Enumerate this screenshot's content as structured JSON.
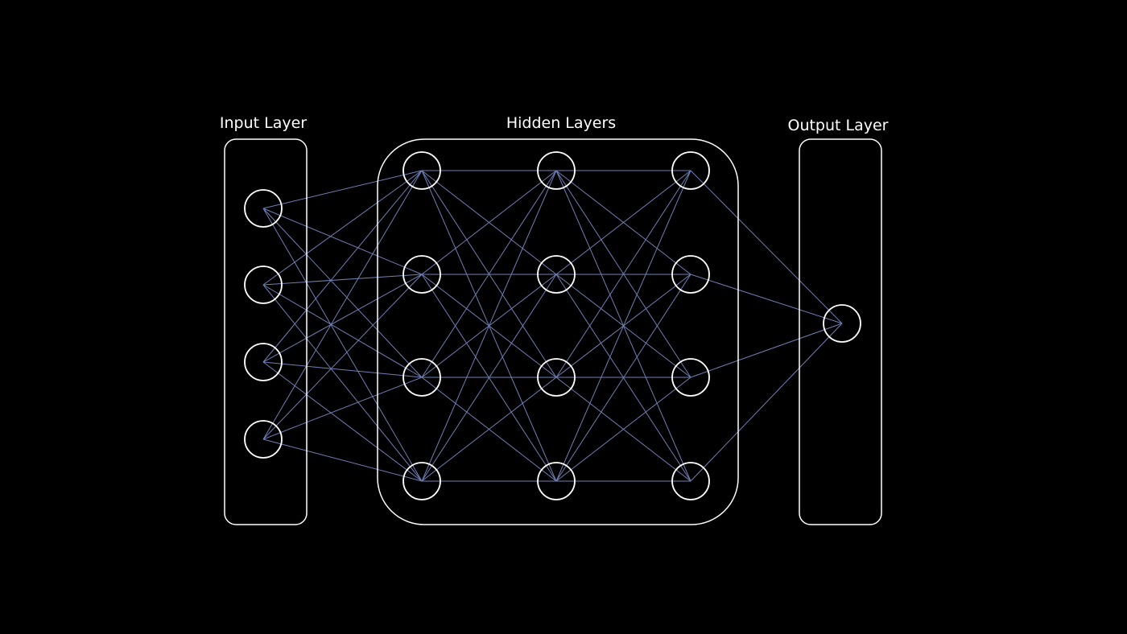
{
  "diagram": {
    "layers": [
      {
        "id": "input",
        "label": "Input Layer",
        "group": "input",
        "node_count": 4
      },
      {
        "id": "hidden-1",
        "label": "",
        "group": "hidden",
        "node_count": 4
      },
      {
        "id": "hidden-2",
        "label": "",
        "group": "hidden",
        "node_count": 4
      },
      {
        "id": "hidden-3",
        "label": "",
        "group": "hidden",
        "node_count": 4
      },
      {
        "id": "output",
        "label": "Output Layer",
        "group": "output",
        "node_count": 1
      }
    ],
    "groups": [
      {
        "id": "input",
        "label": "Input Layer"
      },
      {
        "id": "hidden",
        "label": "Hidden Layers"
      },
      {
        "id": "output",
        "label": "Output Layer"
      }
    ],
    "connections": "fully-connected between adjacent layers",
    "colors": {
      "background": "#000000",
      "node_stroke": "#ffffff",
      "box_stroke": "#ffffff",
      "edge": "#6f7fb4",
      "label": "#ffffff"
    }
  }
}
